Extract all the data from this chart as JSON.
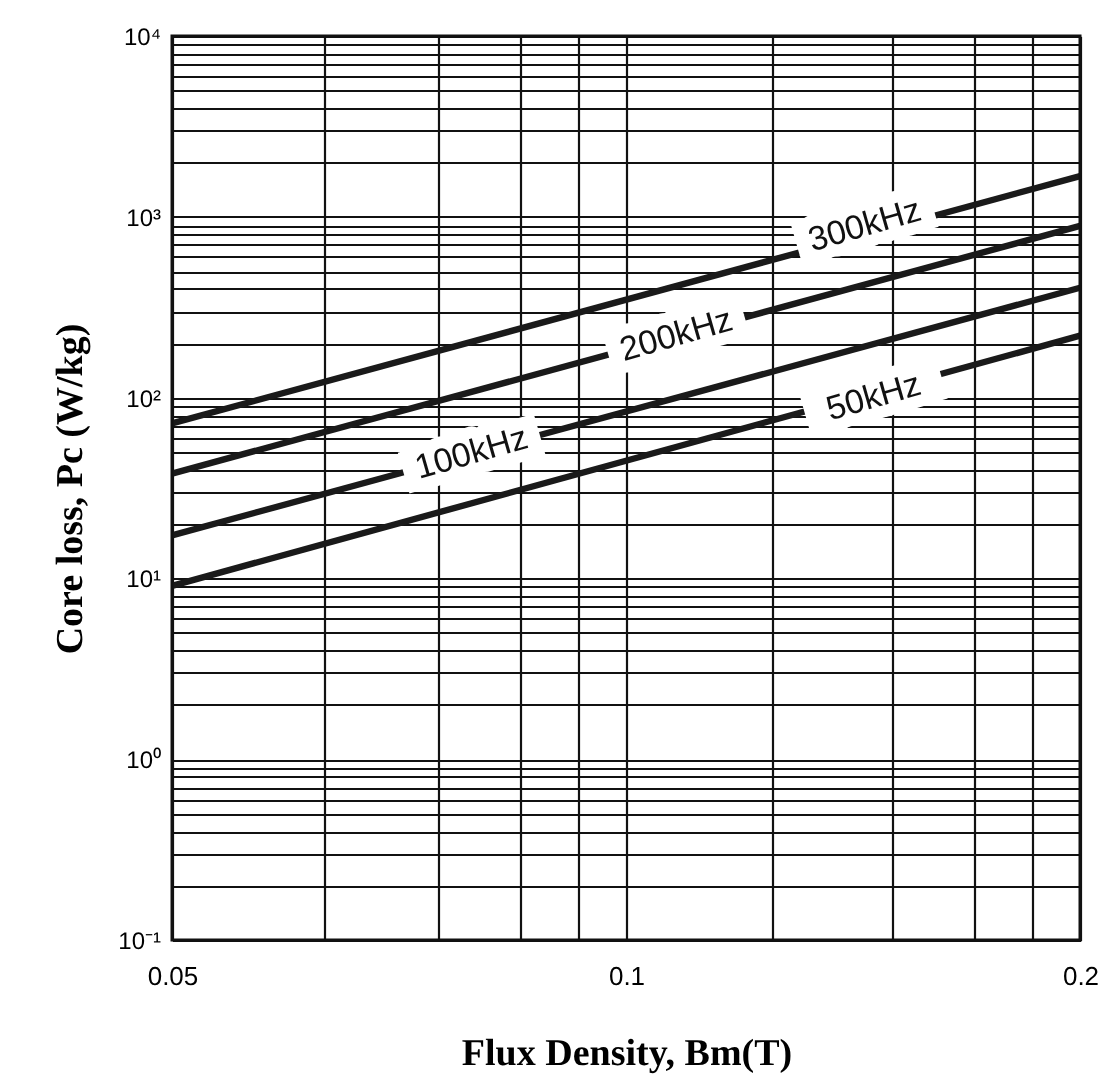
{
  "chart_data": {
    "type": "line",
    "xlabel": "Flux Density, Bm(T)",
    "ylabel": "Core loss, Pc (W/kg)",
    "log": "xy",
    "grid": true,
    "marker": "none",
    "line_style": "solid",
    "xlim": [
      0.05,
      0.2
    ],
    "xticks": [
      0.05,
      {
        "value": 0.063,
        "label": null
      },
      {
        "value": 0.075,
        "label": null
      },
      {
        "value": 0.085,
        "label": null
      },
      {
        "value": 0.093,
        "label": null
      },
      0.1,
      {
        "value": 0.125,
        "label": null
      },
      {
        "value": 0.15,
        "label": null
      },
      {
        "value": 0.17,
        "label": null
      },
      {
        "value": 0.186,
        "label": null
      },
      0.2
    ],
    "ylim": [
      0.1,
      10000
    ],
    "yticks": [
      {
        "value": 0.1,
        "label": "10⁻¹"
      },
      {
        "value": 0.2,
        "label": null
      },
      {
        "value": 0.3,
        "label": null
      },
      {
        "value": 0.4,
        "label": null
      },
      {
        "value": 0.5,
        "label": null
      },
      {
        "value": 0.6,
        "label": null
      },
      {
        "value": 0.7,
        "label": null
      },
      {
        "value": 0.8,
        "label": null
      },
      {
        "value": 0.9,
        "label": null
      },
      {
        "value": 1,
        "label": "10⁰"
      },
      {
        "value": 2,
        "label": null
      },
      {
        "value": 3,
        "label": null
      },
      {
        "value": 4,
        "label": null
      },
      {
        "value": 5,
        "label": null
      },
      {
        "value": 6,
        "label": null
      },
      {
        "value": 7,
        "label": null
      },
      {
        "value": 8,
        "label": null
      },
      {
        "value": 9,
        "label": null
      },
      {
        "value": 10,
        "label": "10¹"
      },
      {
        "value": 20,
        "label": null
      },
      {
        "value": 30,
        "label": null
      },
      {
        "value": 40,
        "label": null
      },
      {
        "value": 50,
        "label": null
      },
      {
        "value": 60,
        "label": null
      },
      {
        "value": 70,
        "label": null
      },
      {
        "value": 80,
        "label": null
      },
      {
        "value": 90,
        "label": null
      },
      {
        "value": 100,
        "label": "10²"
      },
      {
        "value": 200,
        "label": null
      },
      {
        "value": 300,
        "label": null
      },
      {
        "value": 400,
        "label": null
      },
      {
        "value": 500,
        "label": null
      },
      {
        "value": 600,
        "label": null
      },
      {
        "value": 700,
        "label": null
      },
      {
        "value": 800,
        "label": null
      },
      {
        "value": 900,
        "label": null
      },
      {
        "value": 1000,
        "label": "10³"
      },
      {
        "value": 2000,
        "label": null
      },
      {
        "value": 3000,
        "label": null
      },
      {
        "value": 4000,
        "label": null
      },
      {
        "value": 5000,
        "label": null
      },
      {
        "value": 6000,
        "label": null
      },
      {
        "value": 7000,
        "label": null
      },
      {
        "value": 8000,
        "label": null
      },
      {
        "value": 9000,
        "label": null
      },
      {
        "value": 10000,
        "label": "10⁴"
      }
    ],
    "x": [
      0.05,
      0.2
    ],
    "series": [
      {
        "color": "#1a1a1a",
        "values": [
          72,
          1680
        ]
      },
      {
        "color": "#1a1a1a",
        "values": [
          38,
          890
        ]
      },
      {
        "color": "#1a1a1a",
        "values": [
          17.3,
          405
        ]
      },
      {
        "color": "#1a1a1a",
        "values": [
          9.1,
          220
        ]
      }
    ],
    "annotations": [
      {
        "text": "300kHz",
        "x": 0.144,
        "y": 890
      },
      {
        "text": "200kHz",
        "x": 0.108,
        "y": 220
      },
      {
        "text": "100kHz",
        "x": 0.079,
        "y": 49
      },
      {
        "text": "50kHz",
        "x": 0.146,
        "y": 100
      }
    ]
  }
}
